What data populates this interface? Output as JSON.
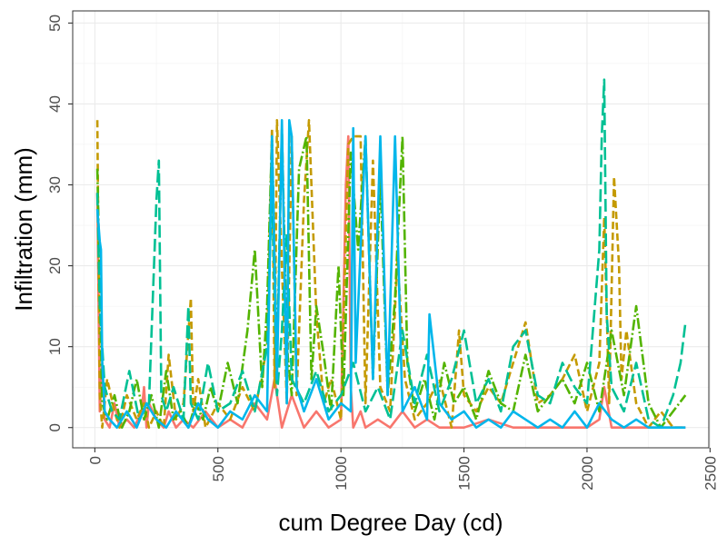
{
  "chart_data": {
    "type": "line",
    "title": "",
    "xlabel": "cum Degree Day (cd)",
    "ylabel": "Infiltration (mm)",
    "xlim": [
      -90,
      2495
    ],
    "ylim": [
      -2.5,
      51.5
    ],
    "xticks": [
      0,
      500,
      1000,
      1500,
      2000,
      2500
    ],
    "yticks": [
      0,
      10,
      20,
      30,
      40,
      50
    ],
    "xtick_labels": [
      "0",
      "500",
      "1000",
      "1500",
      "2000",
      "2500"
    ],
    "ytick_labels": [
      "0",
      "10",
      "20",
      "30",
      "40",
      "50"
    ],
    "grid": true,
    "legend": "none",
    "colors": [
      "#F8766D",
      "#C49A00",
      "#53B400",
      "#00C094",
      "#00B6EB"
    ],
    "series": [
      {
        "color": "#F8766D",
        "dash": "solid",
        "x": [
          10,
          20,
          30,
          40,
          60,
          80,
          100,
          130,
          160,
          190,
          200,
          210,
          220,
          250,
          280,
          300,
          330,
          360,
          400,
          450,
          500,
          550,
          600,
          650,
          700,
          730,
          760,
          800,
          850,
          900,
          950,
          1000,
          1020,
          1030,
          1040,
          1050,
          1080,
          1100,
          1150,
          1200,
          1250,
          1300,
          1350,
          1400,
          1500,
          1600,
          1700,
          1800,
          1900,
          2000,
          2050,
          2070,
          2100,
          2150,
          2200,
          2300,
          2400
        ],
        "y": [
          29,
          2,
          8,
          1,
          0,
          3,
          0,
          1,
          0,
          2,
          5,
          0,
          3,
          1,
          0,
          2,
          0,
          1,
          0,
          2,
          0,
          1,
          0,
          3,
          1,
          6,
          0,
          4,
          0,
          2,
          0,
          1,
          30,
          36,
          5,
          0,
          2,
          0,
          1,
          0,
          2,
          0,
          1,
          0,
          0,
          1,
          0,
          0,
          0,
          0,
          1,
          5,
          0,
          0,
          0,
          0,
          0
        ]
      },
      {
        "color": "#C49A00",
        "dash": "8 4",
        "x": [
          10,
          20,
          30,
          50,
          80,
          100,
          130,
          170,
          200,
          220,
          250,
          280,
          300,
          330,
          360,
          390,
          400,
          420,
          450,
          500,
          550,
          600,
          650,
          700,
          720,
          730,
          740,
          760,
          780,
          800,
          820,
          850,
          870,
          900,
          930,
          960,
          1000,
          1030,
          1050,
          1080,
          1100,
          1130,
          1160,
          1200,
          1230,
          1260,
          1300,
          1350,
          1400,
          1450,
          1480,
          1500,
          1550,
          1600,
          1650,
          1700,
          1750,
          1800,
          1850,
          1900,
          1950,
          2000,
          2050,
          2070,
          2090,
          2110,
          2130,
          2140,
          2160,
          2200,
          2250,
          2300,
          2350,
          2400
        ],
        "y": [
          38,
          4,
          0,
          6,
          2,
          0,
          4,
          1,
          3,
          0,
          2,
          0,
          9,
          1,
          3,
          16,
          2,
          6,
          0,
          3,
          1,
          5,
          2,
          10,
          37,
          5,
          38,
          20,
          3,
          36,
          4,
          28,
          38,
          14,
          3,
          6,
          1,
          35,
          36,
          36,
          3,
          33,
          5,
          2,
          21,
          6,
          1,
          3,
          6,
          0,
          12,
          4,
          2,
          5,
          3,
          8,
          13,
          3,
          4,
          6,
          9,
          2,
          8,
          26,
          3,
          31,
          20,
          6,
          12,
          3,
          0,
          2,
          0,
          0
        ]
      },
      {
        "color": "#53B400",
        "dash": "12 3 2 3",
        "x": [
          10,
          30,
          50,
          80,
          110,
          140,
          170,
          200,
          230,
          260,
          290,
          320,
          350,
          380,
          410,
          440,
          470,
          500,
          540,
          580,
          620,
          650,
          680,
          700,
          720,
          740,
          760,
          780,
          800,
          830,
          860,
          880,
          900,
          930,
          960,
          990,
          1010,
          1040,
          1070,
          1100,
          1130,
          1160,
          1190,
          1220,
          1250,
          1270,
          1300,
          1340,
          1380,
          1420,
          1460,
          1500,
          1550,
          1600,
          1650,
          1700,
          1750,
          1800,
          1850,
          1900,
          1950,
          2000,
          2050,
          2100,
          2150,
          2200,
          2250,
          2300,
          2350,
          2400
        ],
        "y": [
          32,
          3,
          1,
          4,
          0,
          2,
          6,
          1,
          4,
          0,
          7,
          1,
          2,
          0,
          3,
          1,
          5,
          2,
          8,
          3,
          12,
          22,
          5,
          15,
          36,
          8,
          37,
          10,
          4,
          32,
          36,
          6,
          15,
          9,
          2,
          20,
          4,
          34,
          22,
          36,
          6,
          31,
          4,
          16,
          36,
          8,
          2,
          6,
          1,
          8,
          3,
          5,
          1,
          7,
          3,
          2,
          9,
          2,
          4,
          6,
          3,
          8,
          2,
          12,
          4,
          15,
          3,
          0,
          2,
          4
        ]
      },
      {
        "color": "#00C094",
        "dash": "14 5",
        "x": [
          10,
          20,
          40,
          70,
          100,
          140,
          180,
          220,
          250,
          260,
          270,
          290,
          320,
          360,
          380,
          390,
          420,
          460,
          500,
          550,
          600,
          650,
          700,
          720,
          740,
          760,
          780,
          800,
          850,
          900,
          950,
          1000,
          1050,
          1100,
          1150,
          1200,
          1250,
          1300,
          1350,
          1400,
          1450,
          1500,
          1550,
          1600,
          1650,
          1700,
          1750,
          1800,
          1850,
          1900,
          1950,
          2000,
          2050,
          2060,
          2070,
          2080,
          2100,
          2150,
          2200,
          2250,
          2300,
          2350,
          2380,
          2400
        ],
        "y": [
          29,
          15,
          5,
          2,
          1,
          7,
          1,
          3,
          28,
          33,
          4,
          2,
          5,
          1,
          15,
          3,
          1,
          8,
          2,
          3,
          7,
          2,
          10,
          30,
          4,
          12,
          24,
          6,
          3,
          7,
          2,
          4,
          8,
          2,
          5,
          1,
          12,
          3,
          9,
          2,
          6,
          12,
          3,
          6,
          2,
          10,
          12,
          4,
          3,
          8,
          5,
          3,
          22,
          36,
          43,
          14,
          5,
          2,
          8,
          1,
          0,
          4,
          8,
          13
        ]
      },
      {
        "color": "#00B6EB",
        "dash": "solid",
        "x": [
          10,
          20,
          25,
          30,
          40,
          60,
          90,
          130,
          170,
          210,
          250,
          290,
          330,
          380,
          420,
          460,
          500,
          550,
          600,
          650,
          700,
          720,
          740,
          760,
          780,
          790,
          800,
          820,
          850,
          900,
          950,
          1000,
          1040,
          1050,
          1060,
          1100,
          1130,
          1160,
          1190,
          1220,
          1250,
          1300,
          1350,
          1360,
          1400,
          1450,
          1500,
          1550,
          1600,
          1650,
          1700,
          1750,
          1800,
          1850,
          1900,
          1950,
          2000,
          2050,
          2100,
          2150,
          2200,
          2250,
          2300,
          2350,
          2400
        ],
        "y": [
          27,
          23,
          22,
          8,
          2,
          1,
          0,
          2,
          0,
          3,
          1,
          0,
          2,
          0,
          3,
          1,
          0,
          2,
          1,
          4,
          2,
          36,
          6,
          38,
          3,
          38,
          36,
          5,
          2,
          6,
          1,
          3,
          2,
          37,
          8,
          36,
          6,
          36,
          4,
          36,
          2,
          5,
          1,
          14,
          3,
          1,
          2,
          0,
          1,
          0,
          2,
          1,
          0,
          1,
          0,
          2,
          0,
          3,
          1,
          0,
          1,
          0,
          0,
          0,
          0
        ]
      }
    ]
  }
}
